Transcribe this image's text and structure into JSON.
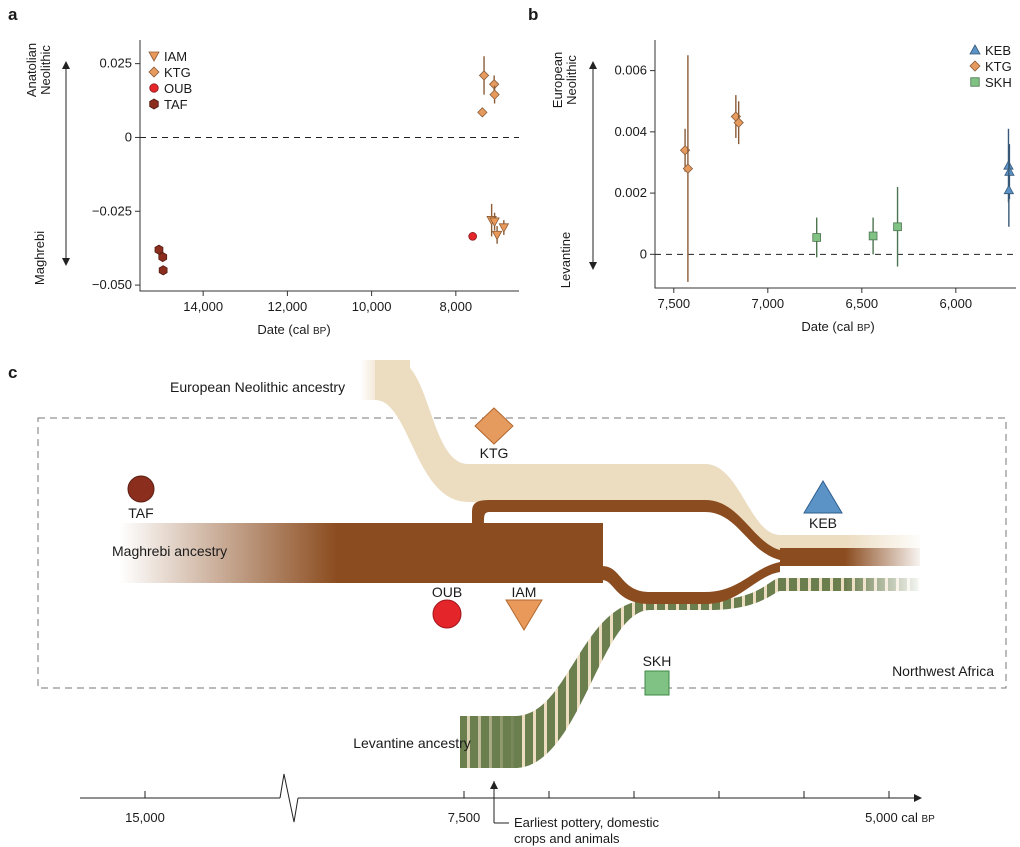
{
  "colors": {
    "TAF": "#8b2e1e",
    "OUB": "#e4262b",
    "IAM": "#e9995a",
    "KTG": "#e59a5e",
    "KEB": "#5b93c7",
    "SKH": "#80c184",
    "maghrebi": "#8b4c1f",
    "european": "#ecdcc0",
    "levantine": "#6b7e4e"
  },
  "panel_a": {
    "letter": "a",
    "ylabel_top": [
      "Anatolian",
      "Neolithic"
    ],
    "ylabel_bottom": "Maghrebi",
    "xlabel": "Date (cal BP)",
    "legend": [
      "IAM",
      "KTG",
      "OUB",
      "TAF"
    ]
  },
  "panel_b": {
    "letter": "b",
    "ylabel_top": [
      "European",
      "Neolithic"
    ],
    "ylabel_bottom": "Levantine",
    "xlabel": "Date (cal BP)",
    "legend": [
      "KEB",
      "KTG",
      "SKH"
    ]
  },
  "chart_data": [
    {
      "type": "scatter",
      "panel": "a",
      "xlabel": "Date (cal BP)",
      "xlim": [
        15500,
        6500
      ],
      "ylim": [
        -0.052,
        0.033
      ],
      "x_ticks": [
        "14,000",
        "12,000",
        "10,000",
        "8,000"
      ],
      "y_ticks": [
        "0.025",
        "0",
        "−0.025",
        "−0.050"
      ],
      "reference_line": 0,
      "series": [
        {
          "name": "IAM",
          "marker": "triangle-down",
          "points": [
            {
              "x": 7150,
              "y": -0.028,
              "err": 0.0055
            },
            {
              "x": 7080,
              "y": -0.0285,
              "err": 0.003
            },
            {
              "x": 7020,
              "y": -0.033,
              "err": 0.003
            },
            {
              "x": 6860,
              "y": -0.0305,
              "err": 0.0025
            }
          ]
        },
        {
          "name": "KTG",
          "marker": "diamond",
          "points": [
            {
              "x": 7330,
              "y": 0.021,
              "err": 0.0065
            },
            {
              "x": 7090,
              "y": 0.018,
              "err": 0.003
            },
            {
              "x": 7080,
              "y": 0.0145,
              "err": 0.003
            },
            {
              "x": 7370,
              "y": 0.0085,
              "err": 0.0015
            }
          ]
        },
        {
          "name": "OUB",
          "marker": "circle",
          "points": [
            {
              "x": 7600,
              "y": -0.0335,
              "err": 0.001
            }
          ]
        },
        {
          "name": "TAF",
          "marker": "hexagon",
          "points": [
            {
              "x": 15050,
              "y": -0.038,
              "err": 0.001
            },
            {
              "x": 14960,
              "y": -0.0405,
              "err": 0.001
            },
            {
              "x": 14950,
              "y": -0.045,
              "err": 0.001
            }
          ]
        }
      ]
    },
    {
      "type": "scatter",
      "panel": "b",
      "xlabel": "Date (cal BP)",
      "xlim": [
        7600,
        5680
      ],
      "ylim": [
        -0.0011,
        0.007
      ],
      "x_ticks": [
        "7,500",
        "7,000",
        "6,500",
        "6,000"
      ],
      "y_ticks": [
        "0.006",
        "0.004",
        "0.002",
        "0"
      ],
      "reference_line": 0,
      "series": [
        {
          "name": "KEB",
          "marker": "triangle-up",
          "points": [
            {
              "x": 5720,
              "y": 0.0029,
              "err": 0.0012
            },
            {
              "x": 5715,
              "y": 0.0027,
              "err": 0.0009
            },
            {
              "x": 5718,
              "y": 0.0021,
              "err": 0.0012
            }
          ]
        },
        {
          "name": "KTG",
          "marker": "diamond",
          "points": [
            {
              "x": 7440,
              "y": 0.0034,
              "err": 0.0007
            },
            {
              "x": 7425,
              "y": 0.0028,
              "err": 0.0037
            },
            {
              "x": 7170,
              "y": 0.0045,
              "err": 0.0007
            },
            {
              "x": 7155,
              "y": 0.0043,
              "err": 0.0007
            }
          ]
        },
        {
          "name": "SKH",
          "marker": "square",
          "points": [
            {
              "x": 6740,
              "y": 0.00055,
              "err": 0.00065
            },
            {
              "x": 6440,
              "y": 0.0006,
              "err": 0.0006
            },
            {
              "x": 6310,
              "y": 0.0009,
              "err": 0.0013
            }
          ]
        }
      ]
    }
  ],
  "panel_c": {
    "letter": "c",
    "european_label": "European Neolithic ancestry",
    "maghrebi_label": "Maghrebi ancestry",
    "levantine_label": "Levantine ancestry",
    "region_label": "Northwest Africa",
    "sites": [
      "TAF",
      "KTG",
      "KEB",
      "OUB",
      "IAM",
      "SKH"
    ],
    "timeline": {
      "tick_15000": "15,000",
      "tick_7500": "7,500",
      "tick_5000": "5,000 cal BP",
      "note_line1": "Earliest pottery, domestic",
      "note_line2": "crops and animals"
    }
  }
}
